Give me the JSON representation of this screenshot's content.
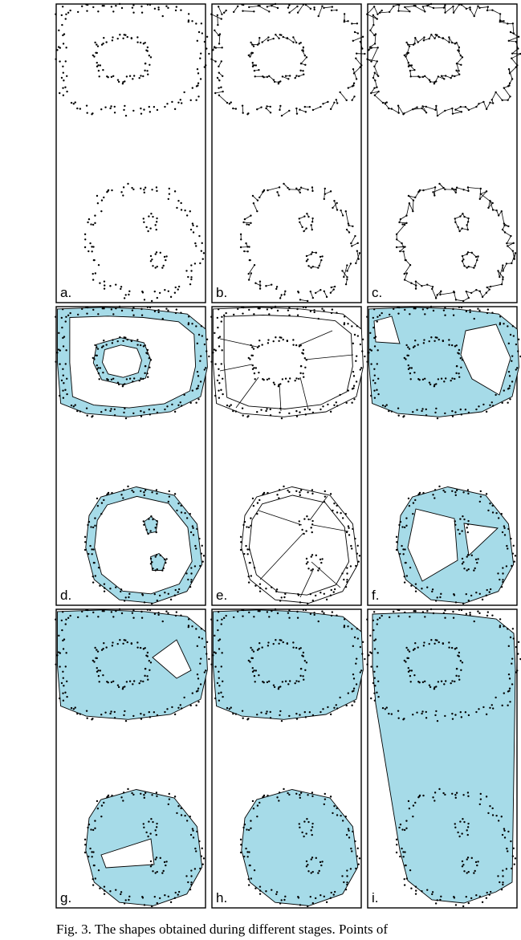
{
  "figure": {
    "panels": [
      {
        "label": "a.",
        "stage": "points"
      },
      {
        "label": "b.",
        "stage": "nearest-neighbour-links"
      },
      {
        "label": "c.",
        "stage": "rings"
      },
      {
        "label": "d.",
        "stage": "ring-fill"
      },
      {
        "label": "e.",
        "stage": "triangulation"
      },
      {
        "label": "f.",
        "stage": "holes-large"
      },
      {
        "label": "g.",
        "stage": "holes-small"
      },
      {
        "label": "h.",
        "stage": "filled"
      },
      {
        "label": "i.",
        "stage": "hull"
      }
    ],
    "colors": {
      "fill": "#a6dbe8",
      "ink": "#000000",
      "background": "#ffffff"
    },
    "caption": "Fig. 3. The shapes obtained during different stages. Points of"
  }
}
